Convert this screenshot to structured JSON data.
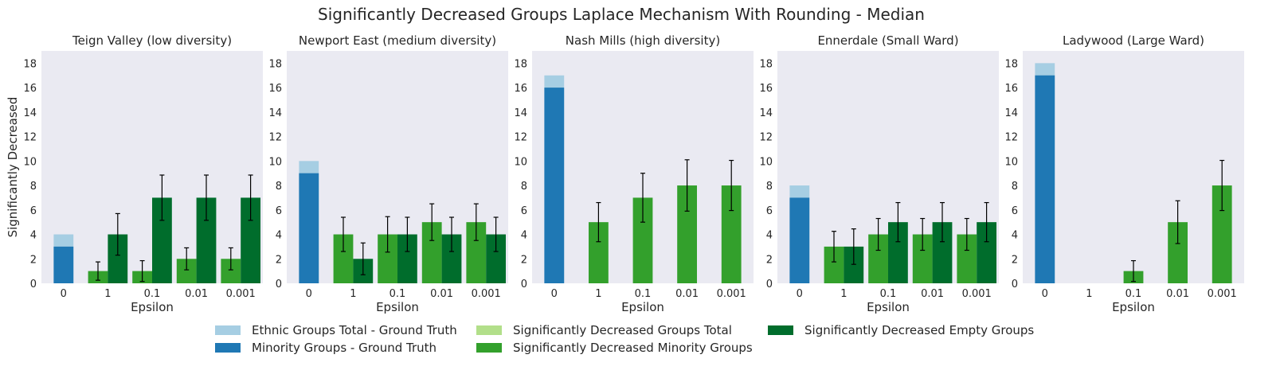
{
  "colors": {
    "ethnic_total_gt": "#a6cee3",
    "minority_gt": "#1f78b4",
    "sig_total": "#b2df8a",
    "sig_minority": "#33a02c",
    "sig_empty": "#006d2c",
    "panel_bg": "#eaeaf2",
    "error_bar": "#000000"
  },
  "chart_data": {
    "type": "bar",
    "title": "Significantly Decreased Groups Laplace Mechanism With Rounding - Median",
    "ylabel": "Significantly Decreased",
    "xlabel": "Epsilon",
    "categories": [
      "0",
      "1",
      "0.1",
      "0.01",
      "0.001"
    ],
    "ylim": [
      0,
      19
    ],
    "yticks": [
      0,
      2,
      4,
      6,
      8,
      10,
      12,
      14,
      16,
      18
    ],
    "grid": false,
    "legend_placement": "bottom-center",
    "legend": [
      {
        "label": "Ethnic Groups Total - Ground Truth",
        "color_key": "ethnic_total_gt"
      },
      {
        "label": "Minority Groups - Ground Truth",
        "color_key": "minority_gt"
      },
      {
        "label": "Significantly Decreased Groups Total",
        "color_key": "sig_total"
      },
      {
        "label": "Significantly Decreased Minority Groups",
        "color_key": "sig_minority"
      },
      {
        "label": "Significantly Decreased Empty Groups",
        "color_key": "sig_empty"
      }
    ],
    "panels": [
      {
        "title": "Teign Valley (low diversity)",
        "ground_truth": {
          "ethnic_total": 4,
          "minority": 3
        },
        "minority": [
          1,
          1,
          2,
          2
        ],
        "minority_err": [
          0.75,
          0.85,
          0.9,
          0.9
        ],
        "empty": [
          4,
          7,
          7,
          7
        ],
        "empty_err": [
          1.7,
          1.85,
          1.85,
          1.85
        ]
      },
      {
        "title": "Newport East (medium diversity)",
        "ground_truth": {
          "ethnic_total": 10,
          "minority": 9
        },
        "minority": [
          4,
          4,
          5,
          5
        ],
        "minority_err": [
          1.4,
          1.45,
          1.5,
          1.5
        ],
        "empty": [
          2,
          4,
          4,
          4
        ],
        "empty_err": [
          1.3,
          1.4,
          1.4,
          1.4
        ]
      },
      {
        "title": "Nash Mills (high diversity)",
        "ground_truth": {
          "ethnic_total": 17,
          "minority": 16
        },
        "minority": [
          5,
          7,
          8,
          8
        ],
        "minority_err": [
          1.6,
          2.0,
          2.1,
          2.05
        ],
        "empty": [],
        "empty_err": []
      },
      {
        "title": "Ennerdale (Small Ward)",
        "ground_truth": {
          "ethnic_total": 8,
          "minority": 7
        },
        "minority": [
          3,
          4,
          4,
          4
        ],
        "minority_err": [
          1.25,
          1.3,
          1.3,
          1.3
        ],
        "empty": [
          3,
          5,
          5,
          5
        ],
        "empty_err": [
          1.45,
          1.6,
          1.6,
          1.6
        ]
      },
      {
        "title": "Ladywood (Large Ward)",
        "ground_truth": {
          "ethnic_total": 18,
          "minority": 17
        },
        "minority": [
          0,
          1,
          5,
          8
        ],
        "minority_err": [
          0,
          0.85,
          1.75,
          2.05
        ],
        "empty": [],
        "empty_err": []
      }
    ]
  }
}
